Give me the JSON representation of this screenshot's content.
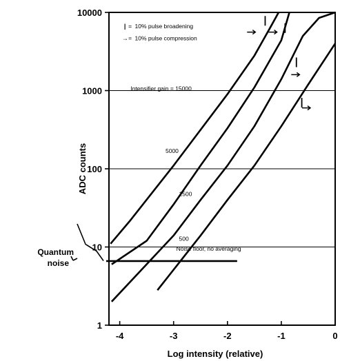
{
  "chart_data": {
    "type": "line",
    "xlabel": "Log intensity (relative)",
    "ylabel": "ADC counts",
    "xlim": [
      -4.2,
      0
    ],
    "ylim": [
      1,
      10000
    ],
    "y_scale": "log",
    "grid": true,
    "x_ticks": [
      {
        "value": -4,
        "label": "-4"
      },
      {
        "value": -3,
        "label": "-3"
      },
      {
        "value": -2,
        "label": "-2"
      },
      {
        "value": -1,
        "label": "-1"
      },
      {
        "value": 0,
        "label": "0"
      }
    ],
    "y_ticks": [
      {
        "value": 1,
        "label": "1"
      },
      {
        "value": 10,
        "label": "10"
      },
      {
        "value": 100,
        "label": "100"
      },
      {
        "value": 1000,
        "label": "1000"
      },
      {
        "value": 10000,
        "label": "10000"
      }
    ],
    "series": [
      {
        "name": "Intensifier gain = 15000",
        "label_at": [
          -3.8,
          1000
        ],
        "points": [
          [
            -4.17,
            11
          ],
          [
            -3.8,
            22
          ],
          [
            -3.0,
            110
          ],
          [
            -2.0,
            900
          ],
          [
            -1.5,
            2800
          ],
          [
            -1.2,
            6500
          ],
          [
            -1.05,
            10000
          ]
        ]
      },
      {
        "name": "5000",
        "label_at": [
          -3.15,
          160
        ],
        "points": [
          [
            -4.15,
            6
          ],
          [
            -3.5,
            12
          ],
          [
            -3.0,
            35
          ],
          [
            -2.5,
            110
          ],
          [
            -2.0,
            330
          ],
          [
            -1.5,
            1100
          ],
          [
            -1.0,
            4400
          ],
          [
            -0.85,
            10000
          ]
        ]
      },
      {
        "name": "1500",
        "label_at": [
          -2.9,
          45
        ],
        "points": [
          [
            -4.15,
            2
          ],
          [
            -3.0,
            14
          ],
          [
            -2.5,
            40
          ],
          [
            -2.0,
            110
          ],
          [
            -1.5,
            350
          ],
          [
            -1.0,
            1400
          ],
          [
            -0.6,
            5000
          ],
          [
            -0.3,
            8500
          ],
          [
            0,
            10000
          ]
        ]
      },
      {
        "name": "500",
        "label_at": [
          -2.9,
          12
        ],
        "points": [
          [
            -3.3,
            2.8
          ],
          [
            -2.5,
            14
          ],
          [
            -2.0,
            40
          ],
          [
            -1.5,
            110
          ],
          [
            -1.0,
            350
          ],
          [
            -0.5,
            1200
          ],
          [
            0,
            4000
          ]
        ]
      }
    ],
    "noise_floor": {
      "label": "Noise floor, no averaging",
      "y": 6.6,
      "x_start": -4.2,
      "x_end": -1.82
    },
    "quantum_noise": {
      "label_line1": "Quantum",
      "label_line2": "noise"
    },
    "legend": {
      "placement": "top-left",
      "entries": [
        {
          "symbol": "|",
          "sep": "=",
          "label": "10% pulse broadening"
        },
        {
          "symbol": "→",
          "sep": "=",
          "label": "10% pulse compression"
        }
      ]
    },
    "markers": {
      "broadening": [
        [
          -1.3,
          7800
        ],
        [
          -0.93,
          6300
        ],
        [
          -0.72,
          2300
        ],
        [
          -0.62,
          700
        ]
      ],
      "compression": [
        [
          -1.52,
          5600
        ],
        [
          -1.12,
          5600
        ],
        [
          -0.7,
          1600
        ],
        [
          -0.5,
          600
        ]
      ]
    }
  }
}
